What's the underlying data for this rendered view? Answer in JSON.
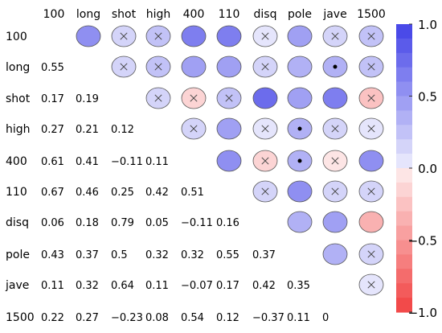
{
  "chart_data": {
    "type": "heatmap",
    "variables": [
      "100",
      "long",
      "shot",
      "high",
      "400",
      "110",
      "disq",
      "pole",
      "jave",
      "1500"
    ],
    "lower_triangle_values": [
      [
        "",
        "",
        "",
        "",
        "",
        "",
        "",
        "",
        "",
        ""
      ],
      [
        "0.55",
        "",
        "",
        "",
        "",
        "",
        "",
        "",
        "",
        ""
      ],
      [
        "0.17",
        "0.19",
        "",
        "",
        "",
        "",
        "",
        "",
        "",
        ""
      ],
      [
        "0.27",
        "0.21",
        "0.12",
        "",
        "",
        "",
        "",
        "",
        "",
        ""
      ],
      [
        "0.61",
        "0.41",
        "−0.11",
        "0.11",
        "",
        "",
        "",
        "",
        "",
        ""
      ],
      [
        "0.67",
        "0.46",
        "0.25",
        "0.42",
        "0.51",
        "",
        "",
        "",
        "",
        ""
      ],
      [
        "0.06",
        "0.18",
        "0.79",
        "0.05",
        "−0.11",
        "0.16",
        "",
        "",
        "",
        ""
      ],
      [
        "0.43",
        "0.37",
        "0.5",
        "0.32",
        "0.32",
        "0.55",
        "0.37",
        "",
        "",
        ""
      ],
      [
        "0.11",
        "0.32",
        "0.64",
        "0.11",
        "−0.07",
        "0.17",
        "0.42",
        "0.35",
        "",
        ""
      ],
      [
        "0.22",
        "0.27",
        "−0.23",
        "0.08",
        "0.54",
        "0.12",
        "−0.37",
        "0.11",
        "0",
        ""
      ]
    ],
    "upper_triangle_markers": [
      [
        "",
        "",
        "x",
        "x",
        "",
        "",
        "x",
        "",
        "x",
        "x"
      ],
      [
        "",
        "",
        "x",
        "x",
        "",
        "",
        "x",
        "",
        "dot",
        "x"
      ],
      [
        "",
        "",
        "",
        "x",
        "x",
        "x",
        "",
        "",
        "",
        "x"
      ],
      [
        "",
        "",
        "",
        "",
        "x",
        "",
        "x",
        "dot",
        "x",
        "x"
      ],
      [
        "",
        "",
        "",
        "",
        "",
        "",
        "x",
        "dot",
        "x",
        ""
      ],
      [
        "",
        "",
        "",
        "",
        "",
        "",
        "x",
        "",
        "x",
        "x"
      ],
      [
        "",
        "",
        "",
        "",
        "",
        "",
        "",
        "",
        "",
        ""
      ],
      [
        "",
        "",
        "",
        "",
        "",
        "",
        "",
        "",
        "",
        "x"
      ],
      [
        "",
        "",
        "",
        "",
        "",
        "",
        "",
        "",
        "",
        "x"
      ],
      [
        "",
        "",
        "",
        "",
        "",
        "",
        "",
        "",
        "",
        ""
      ]
    ],
    "colorbar": {
      "range": [
        -1.0,
        1.0
      ],
      "tick_labels": [
        "1.0",
        "0.5",
        "0.0",
        "−0.5",
        "−1.0"
      ],
      "tick_values": [
        1.0,
        0.5,
        0.0,
        -0.5,
        -1.0
      ],
      "positive_color": "#4a4ae8",
      "negative_color": "#f24a4a"
    }
  }
}
